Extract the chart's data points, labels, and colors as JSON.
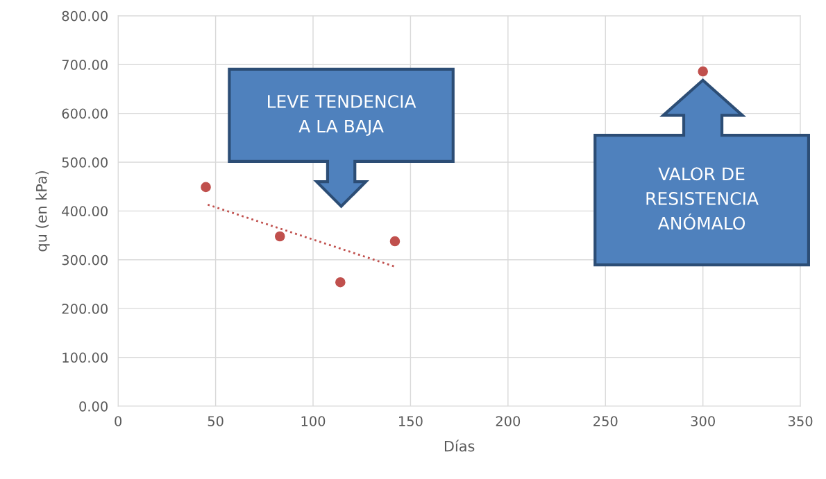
{
  "chart_data": {
    "type": "scatter",
    "xlabel": "Días",
    "ylabel": "qu (en kPa)",
    "xlim": [
      0,
      350
    ],
    "xticks": [
      0,
      50,
      100,
      150,
      200,
      250,
      300,
      350
    ],
    "ylim": [
      0,
      800
    ],
    "yticks": [
      {
        "value": 0,
        "label": "0.00"
      },
      {
        "value": 100,
        "label": "100.00"
      },
      {
        "value": 200,
        "label": "200.00"
      },
      {
        "value": 300,
        "label": "300.00"
      },
      {
        "value": 400,
        "label": "400.00"
      },
      {
        "value": 500,
        "label": "500.00"
      },
      {
        "value": 600,
        "label": "600.00"
      },
      {
        "value": 700,
        "label": "700.00"
      },
      {
        "value": 800,
        "label": "800.00"
      }
    ],
    "grid": true,
    "marker": "circle",
    "series": [
      {
        "color": "#c0504d",
        "x": [
          45,
          83,
          114,
          142,
          300
        ],
        "values": [
          449,
          348,
          254,
          338,
          686
        ]
      },
      {
        "type": "line",
        "color": "#c0504d",
        "line_style": "dotted",
        "marker": "none",
        "x": [
          46,
          142
        ],
        "values": [
          413,
          286
        ]
      }
    ],
    "annotations": [
      "LEVE TENDENCIA\nA LA BAJA",
      "VALOR DE\nRESISTENCIA\nANÓMALO"
    ]
  }
}
